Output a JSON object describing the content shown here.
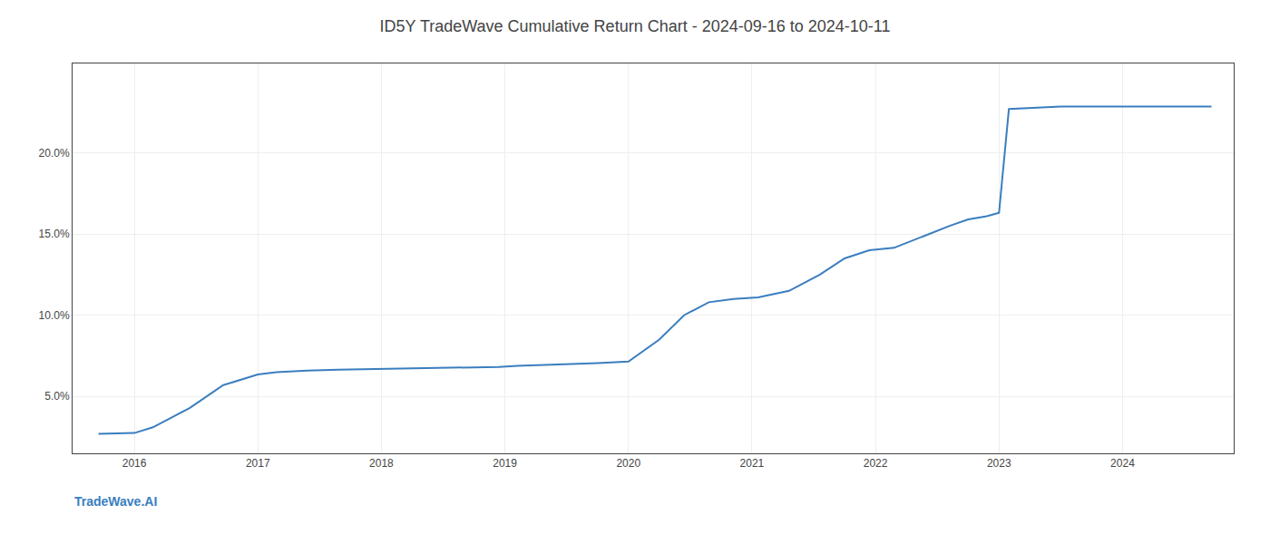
{
  "chart_data": {
    "type": "line",
    "title": "ID5Y TradeWave Cumulative Return Chart - 2024-09-16 to 2024-10-11",
    "annotations": [
      "TradeWave.AI"
    ],
    "x": [
      2015.71,
      2016.0,
      2016.15,
      2016.45,
      2016.72,
      2017.0,
      2017.15,
      2017.4,
      2017.65,
      2017.9,
      2018.1,
      2018.4,
      2018.7,
      2018.95,
      2019.1,
      2019.4,
      2019.65,
      2019.75,
      2020.0,
      2020.25,
      2020.45,
      2020.65,
      2020.85,
      2021.05,
      2021.3,
      2021.55,
      2021.75,
      2021.95,
      2022.15,
      2022.4,
      2022.6,
      2022.75,
      2022.9,
      2023.0,
      2023.08,
      2023.5,
      2023.72,
      2024.0,
      2024.72
    ],
    "values": [
      2.7,
      2.75,
      3.1,
      4.3,
      5.7,
      6.35,
      6.5,
      6.6,
      6.65,
      6.68,
      6.72,
      6.75,
      6.78,
      6.82,
      6.88,
      6.95,
      7.0,
      7.05,
      7.15,
      8.5,
      10.0,
      10.8,
      11.0,
      11.1,
      11.5,
      12.5,
      13.5,
      14.0,
      14.15,
      14.9,
      15.5,
      15.9,
      16.1,
      16.3,
      22.7,
      22.85,
      22.85,
      22.85,
      22.85
    ],
    "color": "#3a7ebf",
    "xlim": [
      2015.5,
      2024.9
    ],
    "ylim": [
      1.5,
      25.5
    ],
    "xticks": [
      2016,
      2017,
      2018,
      2019,
      2020,
      2021,
      2022,
      2023,
      2024
    ],
    "yticks": [
      {
        "value": 5.0,
        "label": "5.0%"
      },
      {
        "value": 10.0,
        "label": "10.0%"
      },
      {
        "value": 15.0,
        "label": "15.0%"
      },
      {
        "value": 20.0,
        "label": "20.0%"
      }
    ],
    "grid": true
  }
}
